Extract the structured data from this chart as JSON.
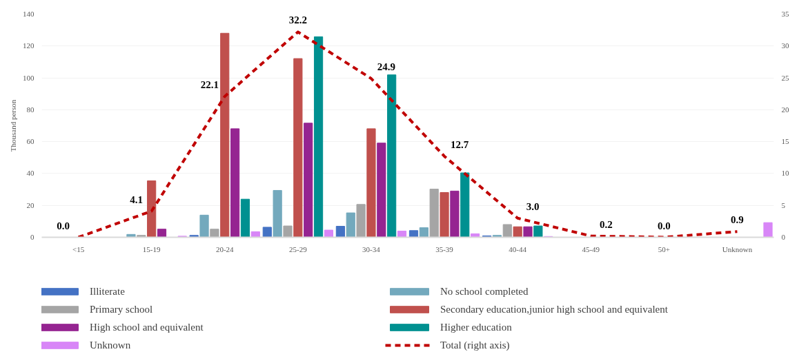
{
  "chart_data": {
    "type": "bar",
    "ylabel": "Thousand person",
    "categories": [
      "<15",
      "15-19",
      "20-24",
      "25-29",
      "30-34",
      "35-39",
      "40-44",
      "45-49",
      "50+",
      "Unknown"
    ],
    "ylim": [
      0,
      140
    ],
    "yticks": [
      0,
      20,
      40,
      60,
      80,
      100,
      120,
      140
    ],
    "y2lim": [
      0,
      35
    ],
    "y2ticks": [
      0,
      5,
      10,
      15,
      20,
      25,
      30,
      35
    ],
    "grid": "y",
    "legend": "bottom",
    "series": [
      {
        "name": "Illiterate",
        "color": "#4472c4",
        "values": [
          0,
          0,
          1.2,
          6.3,
          6.9,
          4.2,
          0.9,
          0,
          0,
          0
        ]
      },
      {
        "name": "No school completed",
        "color": "#73a9bd",
        "values": [
          0,
          1.8,
          13.9,
          29.4,
          15.3,
          6.0,
          1.2,
          0,
          0,
          0
        ]
      },
      {
        "name": "Primary school",
        "color": "#a5a5a5",
        "values": [
          0,
          1.2,
          5.1,
          7.1,
          20.6,
          30.2,
          8.0,
          0,
          0,
          0
        ]
      },
      {
        "name": "Secondary education,junior high school and equivalent",
        "color": "#c0504d",
        "values": [
          0,
          35.4,
          128,
          112.1,
          68.1,
          28.1,
          6.6,
          0,
          0,
          0
        ]
      },
      {
        "name": "High school and equivalent",
        "color": "#952491",
        "values": [
          0,
          5.1,
          68.1,
          71.6,
          59.1,
          29.0,
          6.6,
          0,
          0,
          0
        ]
      },
      {
        "name": "Higher education",
        "color": "#009090",
        "values": [
          0,
          0,
          23.9,
          125.8,
          101.9,
          40.4,
          7.1,
          0,
          0,
          0
        ]
      },
      {
        "name": "Unknown",
        "color": "#d886f7",
        "values": [
          0,
          0.7,
          3.5,
          4.5,
          3.9,
          2.2,
          0.5,
          0,
          0,
          9.2
        ]
      },
      {
        "name": "Total (right axis)",
        "color": "#c00000",
        "type": "line",
        "axis": "y2",
        "line_style": "dashed",
        "values": [
          0.0,
          4.1,
          22.1,
          32.2,
          24.9,
          12.7,
          3.0,
          0.2,
          0.0,
          0.9
        ],
        "value_labels": [
          "0.0",
          "4.1",
          "22.1",
          "32.2",
          "24.9",
          "12.7",
          "3.0",
          "0.2",
          "0.0",
          "0.9"
        ]
      }
    ]
  }
}
